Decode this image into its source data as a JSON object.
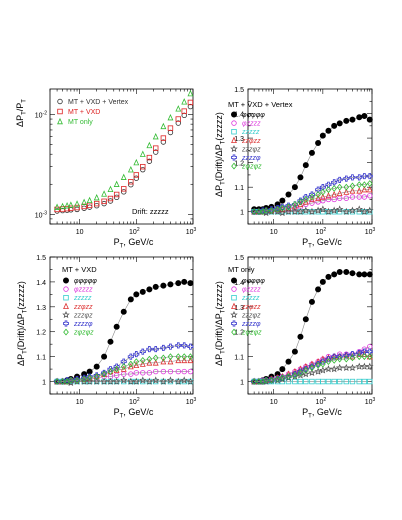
{
  "figure": {
    "background": "#ffffff"
  },
  "chart_data": [
    {
      "id": "p1",
      "type": "scatter",
      "log_x": true,
      "log_y": true,
      "xlim": [
        3,
        1000
      ],
      "ylim": [
        0.0008,
        0.018
      ],
      "ylabel": "ΔP_T/P_T",
      "xlabel": "P_T, GeV/c",
      "x_ticks": [
        "10",
        "10²",
        "10³"
      ],
      "y_ticks": [
        "10⁻³",
        "10⁻²"
      ],
      "annotation": "Drift: zzzzz",
      "series": [
        {
          "name": "MT + VXD + Vertex",
          "color": "#333333",
          "marker": "circle-open",
          "x": [
            4,
            5,
            6,
            7,
            9,
            12,
            15,
            20,
            27,
            35,
            45,
            60,
            80,
            100,
            130,
            170,
            220,
            300,
            400,
            550,
            700,
            900
          ],
          "y": [
            0.00108,
            0.00109,
            0.0011,
            0.00111,
            0.00112,
            0.00115,
            0.00118,
            0.00122,
            0.00128,
            0.00136,
            0.00148,
            0.00168,
            0.00198,
            0.0023,
            0.0028,
            0.0034,
            0.0042,
            0.0053,
            0.0066,
            0.0082,
            0.0098,
            0.012
          ]
        },
        {
          "name": "MT + VXD",
          "color": "#dd2222",
          "marker": "square-open",
          "x": [
            4,
            5,
            6,
            7,
            9,
            12,
            15,
            20,
            27,
            35,
            45,
            60,
            80,
            100,
            130,
            170,
            220,
            300,
            400,
            550,
            700,
            900
          ],
          "y": [
            0.00112,
            0.00113,
            0.00114,
            0.00115,
            0.00117,
            0.0012,
            0.00123,
            0.00128,
            0.00135,
            0.00144,
            0.00158,
            0.0018,
            0.00212,
            0.00248,
            0.003,
            0.0037,
            0.0046,
            0.0058,
            0.0073,
            0.009,
            0.0108,
            0.0132
          ]
        },
        {
          "name": "MT only",
          "color": "#33bb33",
          "marker": "triangle-open",
          "x": [
            4,
            5,
            6,
            7,
            9,
            12,
            15,
            20,
            27,
            35,
            45,
            60,
            80,
            100,
            130,
            170,
            220,
            300,
            400,
            550,
            700,
            900
          ],
          "y": [
            0.00118,
            0.0012,
            0.00122,
            0.00124,
            0.00127,
            0.00132,
            0.00138,
            0.00147,
            0.0016,
            0.00178,
            0.002,
            0.00235,
            0.0028,
            0.0033,
            0.004,
            0.0049,
            0.006,
            0.0076,
            0.0093,
            0.0114,
            0.0134,
            0.0162
          ]
        }
      ]
    },
    {
      "id": "p2",
      "type": "line",
      "log_x": true,
      "xlim": [
        3,
        1000
      ],
      "ylim": [
        0.95,
        1.5
      ],
      "ylabel": "ΔP_T(Drift)/ΔP_T(zzzzz)",
      "xlabel": "P_T, GeV/c",
      "x_ticks": [
        "10",
        "10²",
        "10³"
      ],
      "y_ticks": [
        "1",
        "1.1",
        "1.2",
        "1.3",
        "1.4",
        "1.5"
      ],
      "title": "MT + VXD + Vertex",
      "x": [
        4,
        5,
        6,
        7,
        9,
        12,
        15,
        20,
        27,
        35,
        45,
        60,
        80,
        100,
        130,
        170,
        220,
        300,
        400,
        550,
        700,
        900
      ],
      "series": [
        {
          "name": "φφφφφ",
          "color": "#000000",
          "marker": "circle-filled",
          "y": [
            1.01,
            1.01,
            1.01,
            1.015,
            1.02,
            1.03,
            1.045,
            1.07,
            1.1,
            1.14,
            1.19,
            1.24,
            1.28,
            1.31,
            1.33,
            1.35,
            1.36,
            1.37,
            1.375,
            1.385,
            1.39,
            1.375
          ]
        },
        {
          "name": "φzzzz",
          "color": "#dd33dd",
          "marker": "circle-open",
          "y": [
            1.0,
            1.0,
            1.0,
            1.0,
            1.005,
            1.005,
            1.01,
            1.01,
            1.015,
            1.02,
            1.03,
            1.035,
            1.04,
            1.045,
            1.05,
            1.05,
            1.055,
            1.055,
            1.06,
            1.06,
            1.06,
            1.065
          ]
        },
        {
          "name": "zzzzz",
          "color": "#33cccc",
          "marker": "square-open",
          "y": [
            1.0,
            1.0,
            1.0,
            1.0,
            1.0,
            1.0,
            1.0,
            1.0,
            1.0,
            1.0,
            1.0,
            1.0,
            1.0,
            1.0,
            1.0,
            1.0,
            1.0,
            1.0,
            1.0,
            1.0,
            1.0,
            1.0
          ]
        },
        {
          "name": "zzφzz",
          "color": "#dd3333",
          "marker": "triangle-open",
          "y": [
            1.0,
            1.0,
            1.0,
            1.005,
            1.005,
            1.01,
            1.01,
            1.015,
            1.02,
            1.03,
            1.04,
            1.05,
            1.055,
            1.06,
            1.065,
            1.07,
            1.075,
            1.08,
            1.085,
            1.085,
            1.09,
            1.09
          ]
        },
        {
          "name": "zzzφz",
          "color": "#555555",
          "marker": "star-open",
          "y": [
            1.0,
            1.0,
            1.0,
            0.995,
            1.0,
            1.0,
            0.995,
            1.0,
            1.0,
            1.0,
            1.005,
            1.0,
            1.005,
            1.01,
            1.0,
            1.005,
            1.01,
            1.0,
            1.005,
            1.01,
            1.0,
            1.005
          ]
        },
        {
          "name": "zzzzφ",
          "color": "#3333cc",
          "marker": "cross-open",
          "y": [
            1.0,
            1.0,
            1.005,
            1.005,
            1.01,
            1.015,
            1.02,
            1.025,
            1.03,
            1.045,
            1.06,
            1.07,
            1.09,
            1.1,
            1.11,
            1.12,
            1.13,
            1.135,
            1.14,
            1.14,
            1.145,
            1.145
          ]
        },
        {
          "name": "zφzφz",
          "color": "#33bb33",
          "marker": "diamond-open",
          "y": [
            1.0,
            1.0,
            1.0,
            1.005,
            1.005,
            1.01,
            1.015,
            1.02,
            1.03,
            1.04,
            1.05,
            1.06,
            1.07,
            1.08,
            1.09,
            1.095,
            1.1,
            1.1,
            1.105,
            1.11,
            1.11,
            1.115
          ]
        }
      ]
    },
    {
      "id": "p3",
      "type": "line",
      "log_x": true,
      "xlim": [
        3,
        1000
      ],
      "ylim": [
        0.95,
        1.5
      ],
      "ylabel": "ΔP_T(Drift)/ΔP_T(zzzzz)",
      "xlabel": "P_T, GeV/c",
      "x_ticks": [
        "10",
        "10²",
        "10³"
      ],
      "y_ticks": [
        "1",
        "1.1",
        "1.2",
        "1.3",
        "1.4",
        "1.5"
      ],
      "title": "MT + VXD",
      "x": [
        4,
        5,
        6,
        7,
        9,
        12,
        15,
        20,
        27,
        35,
        45,
        60,
        80,
        100,
        130,
        170,
        220,
        300,
        400,
        550,
        700,
        900
      ],
      "series": [
        {
          "name": "φφφφφ",
          "color": "#000000",
          "marker": "circle-filled",
          "y": [
            1.0,
            1.0,
            1.005,
            1.01,
            1.02,
            1.03,
            1.04,
            1.06,
            1.1,
            1.16,
            1.22,
            1.28,
            1.33,
            1.35,
            1.36,
            1.37,
            1.38,
            1.385,
            1.39,
            1.395,
            1.4,
            1.395
          ]
        },
        {
          "name": "φzzzz",
          "color": "#dd33dd",
          "marker": "circle-open",
          "y": [
            1.0,
            1.0,
            1.0,
            1.005,
            1.005,
            1.01,
            1.01,
            1.015,
            1.02,
            1.02,
            1.025,
            1.03,
            1.03,
            1.035,
            1.035,
            1.035,
            1.04,
            1.04,
            1.04,
            1.04,
            1.04,
            1.04
          ]
        },
        {
          "name": "zzzzz",
          "color": "#33cccc",
          "marker": "square-open",
          "y": [
            1.0,
            1.0,
            1.0,
            1.0,
            1.0,
            1.0,
            1.0,
            1.0,
            1.0,
            1.0,
            1.0,
            1.0,
            1.0,
            1.0,
            1.0,
            1.0,
            1.0,
            1.0,
            1.0,
            1.0,
            1.0,
            1.0
          ]
        },
        {
          "name": "zzφzz",
          "color": "#dd3333",
          "marker": "triangle-open",
          "y": [
            1.0,
            1.0,
            1.0,
            1.005,
            1.01,
            1.01,
            1.015,
            1.02,
            1.03,
            1.04,
            1.045,
            1.05,
            1.06,
            1.065,
            1.07,
            1.075,
            1.075,
            1.08,
            1.08,
            1.085,
            1.085,
            1.085
          ]
        },
        {
          "name": "zzzφz",
          "color": "#555555",
          "marker": "star-open",
          "y": [
            1.0,
            1.0,
            1.0,
            0.995,
            1.0,
            1.0,
            1.0,
            1.0,
            1.0,
            1.0,
            1.0,
            1.005,
            1.0,
            1.0,
            1.005,
            1.0,
            1.005,
            1.0,
            1.005,
            1.0,
            1.005,
            1.0
          ]
        },
        {
          "name": "zzzzφ",
          "color": "#3333cc",
          "marker": "cross-open",
          "y": [
            1.0,
            1.0,
            1.005,
            1.005,
            1.01,
            1.015,
            1.02,
            1.025,
            1.035,
            1.05,
            1.06,
            1.08,
            1.1,
            1.11,
            1.12,
            1.13,
            1.13,
            1.135,
            1.14,
            1.145,
            1.145,
            1.14
          ]
        },
        {
          "name": "zφzφz",
          "color": "#33bb33",
          "marker": "diamond-open",
          "y": [
            1.0,
            1.0,
            1.0,
            1.005,
            1.005,
            1.01,
            1.015,
            1.02,
            1.03,
            1.04,
            1.05,
            1.06,
            1.07,
            1.08,
            1.085,
            1.09,
            1.095,
            1.095,
            1.1,
            1.1,
            1.1,
            1.1
          ]
        }
      ]
    },
    {
      "id": "p4",
      "type": "line",
      "log_x": true,
      "xlim": [
        3,
        1000
      ],
      "ylim": [
        0.95,
        1.5
      ],
      "ylabel": "ΔP_T(Drift)/ΔP_T(zzzzz)",
      "xlabel": "P_T, GeV/c",
      "x_ticks": [
        "10",
        "10²",
        "10³"
      ],
      "y_ticks": [
        "1",
        "1.1",
        "1.2",
        "1.3",
        "1.4",
        "1.5"
      ],
      "title": "MT only",
      "x": [
        4,
        5,
        6,
        7,
        9,
        12,
        15,
        20,
        27,
        35,
        45,
        60,
        80,
        100,
        130,
        170,
        220,
        300,
        400,
        550,
        700,
        900
      ],
      "series": [
        {
          "name": "φφφφφ",
          "color": "#000000",
          "marker": "circle-filled",
          "y": [
            1.0,
            1.0,
            1.005,
            1.01,
            1.02,
            1.03,
            1.05,
            1.08,
            1.12,
            1.18,
            1.25,
            1.32,
            1.37,
            1.4,
            1.42,
            1.43,
            1.44,
            1.44,
            1.435,
            1.43,
            1.43,
            1.43
          ]
        },
        {
          "name": "φzzzz",
          "color": "#dd33dd",
          "marker": "circle-open",
          "y": [
            1.0,
            1.0,
            1.005,
            1.005,
            1.01,
            1.015,
            1.02,
            1.03,
            1.04,
            1.05,
            1.06,
            1.07,
            1.08,
            1.09,
            1.1,
            1.1,
            1.11,
            1.11,
            1.11,
            1.12,
            1.13,
            1.14
          ]
        },
        {
          "name": "zzzzz",
          "color": "#33cccc",
          "marker": "square-open",
          "y": [
            1.0,
            1.0,
            1.0,
            1.0,
            1.0,
            1.0,
            1.0,
            1.0,
            1.0,
            1.0,
            1.0,
            1.0,
            1.0,
            1.0,
            1.0,
            1.0,
            1.0,
            1.0,
            1.0,
            1.0,
            1.0,
            1.0
          ]
        },
        {
          "name": "zzφzz",
          "color": "#dd3333",
          "marker": "triangle-open",
          "y": [
            1.0,
            1.0,
            1.0,
            1.005,
            1.01,
            1.015,
            1.02,
            1.03,
            1.04,
            1.05,
            1.06,
            1.07,
            1.08,
            1.09,
            1.095,
            1.1,
            1.1,
            1.105,
            1.1,
            1.11,
            1.11,
            1.1
          ]
        },
        {
          "name": "zzzφz",
          "color": "#555555",
          "marker": "star-open",
          "y": [
            1.0,
            1.0,
            1.0,
            1.0,
            1.005,
            1.005,
            1.01,
            1.015,
            1.02,
            1.025,
            1.03,
            1.035,
            1.04,
            1.045,
            1.05,
            1.05,
            1.055,
            1.055,
            1.055,
            1.06,
            1.06,
            1.06
          ]
        },
        {
          "name": "zzzzφ",
          "color": "#3333cc",
          "marker": "cross-open",
          "y": [
            1.0,
            1.0,
            1.0,
            1.005,
            1.005,
            1.01,
            1.015,
            1.02,
            1.03,
            1.04,
            1.05,
            1.06,
            1.07,
            1.08,
            1.09,
            1.1,
            1.1,
            1.105,
            1.11,
            1.115,
            1.12,
            1.12
          ]
        },
        {
          "name": "zφzφz",
          "color": "#33bb33",
          "marker": "diamond-open",
          "y": [
            1.0,
            1.0,
            1.0,
            1.005,
            1.005,
            1.01,
            1.015,
            1.02,
            1.025,
            1.035,
            1.045,
            1.055,
            1.065,
            1.07,
            1.08,
            1.085,
            1.09,
            1.09,
            1.095,
            1.1,
            1.1,
            1.1
          ]
        }
      ]
    }
  ]
}
